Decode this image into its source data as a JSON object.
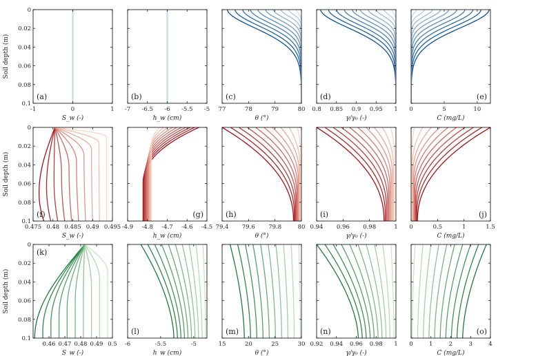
{
  "chart_data": {
    "type": "line",
    "figure": "Grid of soil-depth profiles (3 scenarios x 5 variables)",
    "ylabel": "Soil depth (m)",
    "y_range": [
      0,
      0.1
    ],
    "y_ticks": [
      "0",
      "0.02",
      "0.04",
      "0.06",
      "0.08",
      "0.1"
    ],
    "rows": [
      {
        "name": "row-blue",
        "palette": {
          "light": "#c6dbef",
          "dark": "#08519c"
        },
        "panels": [
          {
            "label": "(a)",
            "label_pos": "bottom-left",
            "xlabel": "S_w (-)",
            "xlim": [
              -1,
              1
            ],
            "xticks": [
              "-1",
              "0",
              "1"
            ],
            "tick_values": [
              -1,
              0,
              1
            ],
            "kind": "const",
            "value": 0,
            "n": 10
          },
          {
            "label": "(b)",
            "label_pos": "bottom-left",
            "xlabel": "h_w (cm)",
            "xlim": [
              -7,
              -5
            ],
            "xticks": [
              "-7",
              "-6.5",
              "-6",
              "-5.5",
              "-5"
            ],
            "tick_values": [
              -7,
              -6.5,
              -6,
              -5.5,
              -5
            ],
            "kind": "const",
            "value": -6,
            "n": 10
          },
          {
            "label": "(c)",
            "label_pos": "bottom-left",
            "xlabel": "θ (°)",
            "xlim": [
              77,
              80
            ],
            "xticks": [
              "77",
              "78",
              "79",
              "80"
            ],
            "tick_values": [
              77,
              78,
              79,
              80
            ],
            "kind": "front",
            "deep": 80,
            "surface_start": 77.2,
            "surface_end": 79.8,
            "depth_start": 0.03,
            "depth_end": 0.005,
            "n": 10
          },
          {
            "label": "(d)",
            "label_pos": "bottom-left",
            "xlabel": "γ/γ₀ (-)",
            "xlim": [
              0.8,
              1.0
            ],
            "xticks": [
              "0.8",
              "0.85",
              "0.9",
              "0.95",
              "1"
            ],
            "tick_values": [
              0.8,
              0.85,
              0.9,
              0.95,
              1.0
            ],
            "kind": "front",
            "deep": 1.0,
            "surface_start": 0.81,
            "surface_end": 0.99,
            "depth_start": 0.03,
            "depth_end": 0.005,
            "n": 10
          },
          {
            "label": "(e)",
            "label_pos": "bottom-right",
            "xlabel": "C (mg/L)",
            "xlim": [
              0,
              12
            ],
            "xticks": [
              "0",
              "5",
              "10"
            ],
            "tick_values": [
              0,
              5,
              10
            ],
            "kind": "front",
            "deep": 0,
            "surface_start": 11.8,
            "surface_end": 0.8,
            "depth_start": 0.03,
            "depth_end": 0.005,
            "n": 10
          }
        ]
      },
      {
        "name": "row-red",
        "palette": {
          "light": "#fcd5c2",
          "dark": "#a50f15"
        },
        "panels": [
          {
            "label": "(f)",
            "label_pos": "bottom-left",
            "xlabel": "S_w (-)",
            "xlim": [
              0.475,
              0.495
            ],
            "xticks": [
              "0.475",
              "0.48",
              "0.485",
              "0.49",
              "0.495"
            ],
            "tick_values": [
              0.475,
              0.48,
              0.485,
              0.49,
              0.495
            ],
            "kind": "belly",
            "surface": 0.4805,
            "deep_start": 0.4785,
            "deep_end": 0.4935,
            "trough_start": 0.4765,
            "trough_end": 0.4935,
            "trough_depth_start": 0.07,
            "trough_depth_end": 0.01,
            "n": 10
          },
          {
            "label": "(g)",
            "label_pos": "bottom-right",
            "xlabel": "h_w (cm)",
            "xlim": [
              -4.9,
              -4.5
            ],
            "xticks": [
              "-4.9",
              "-4.8",
              "-4.7",
              "-4.6",
              "-4.5"
            ],
            "tick_values": [
              -4.9,
              -4.8,
              -4.7,
              -4.6,
              -4.5
            ],
            "kind": "decay",
            "deep_start": -4.822,
            "deep_end": -4.78,
            "surface_start": -4.54,
            "surface_end": -4.74,
            "depth_start": 0.06,
            "depth_end": 0.02,
            "n": 10
          },
          {
            "label": "(h)",
            "label_pos": "bottom-left",
            "xlabel": "θ (°)",
            "xlim": [
              79.4,
              80
            ],
            "xticks": [
              "79.4",
              "79.6",
              "79.8",
              "80"
            ],
            "tick_values": [
              79.4,
              79.6,
              79.8,
              80
            ],
            "kind": "decay",
            "deep_start": 79.94,
            "deep_end": 79.995,
            "surface_start": 79.4,
            "surface_end": 79.97,
            "depth_start": 0.1,
            "depth_end": 0.035,
            "n": 10
          },
          {
            "label": "(i)",
            "label_pos": "bottom-left",
            "xlabel": "γ/γ₀ (-)",
            "xlim": [
              0.94,
              1.0
            ],
            "xticks": [
              "0.94",
              "0.96",
              "0.98",
              "1"
            ],
            "tick_values": [
              0.94,
              0.96,
              0.98,
              1.0
            ],
            "kind": "decay",
            "deep_start": 0.991,
            "deep_end": 0.999,
            "surface_start": 0.94,
            "surface_end": 0.996,
            "depth_start": 0.1,
            "depth_end": 0.035,
            "n": 10
          },
          {
            "label": "(j)",
            "label_pos": "bottom-right",
            "xlabel": "C (mg/L)",
            "xlim": [
              0,
              1.5
            ],
            "xticks": [
              "0",
              "0.5",
              "1",
              "1.5"
            ],
            "tick_values": [
              0,
              0.5,
              1,
              1.5
            ],
            "kind": "decay",
            "deep_start": 0.12,
            "deep_end": 0.01,
            "surface_start": 1.5,
            "surface_end": 0.06,
            "depth_start": 0.1,
            "depth_end": 0.035,
            "n": 10
          }
        ]
      },
      {
        "name": "row-green",
        "palette": {
          "light": "#c7e9c0",
          "dark": "#1a7a38"
        },
        "panels": [
          {
            "label": "(k)",
            "label_pos": "top-left",
            "xlabel": "S_w (-)",
            "xlim": [
              0.45,
              0.5
            ],
            "xticks": [
              "0.46",
              "0.47",
              "0.48",
              "0.49",
              "0.5"
            ],
            "tick_values": [
              0.46,
              0.47,
              0.48,
              0.49,
              0.5
            ],
            "kind": "fan",
            "surface": 0.4825,
            "deep_start": 0.451,
            "deep_end": 0.497,
            "depth_start": 0.1,
            "depth_end": 0.03,
            "n": 10
          },
          {
            "label": "(l)",
            "label_pos": "bottom-left",
            "xlabel": "h_w (cm)",
            "xlim": [
              -6,
              -4.8
            ],
            "xticks": [
              "-6",
              "-5.5",
              "-5"
            ],
            "tick_values": [
              -6,
              -5.5,
              -5
            ],
            "kind": "bow",
            "surface_start": -5.8,
            "surface_end": -4.86,
            "deep_start": -5.3,
            "deep_end": -4.82,
            "n": 10
          },
          {
            "label": "(m)",
            "label_pos": "bottom-left",
            "xlabel": "θ (°)",
            "xlim": [
              15,
              30
            ],
            "xticks": [
              "15",
              "20",
              "25",
              "30"
            ],
            "tick_values": [
              15,
              20,
              25,
              30
            ],
            "kind": "bow",
            "surface_start": 16.5,
            "surface_end": 29.5,
            "deep_start": 19.2,
            "deep_end": 29.8,
            "n": 10
          },
          {
            "label": "(n)",
            "label_pos": "bottom-left",
            "xlabel": "γ/γ₀ (-)",
            "xlim": [
              0.92,
              1.0
            ],
            "xticks": [
              "0.92",
              "0.94",
              "0.96",
              "0.98",
              "1"
            ],
            "tick_values": [
              0.92,
              0.94,
              0.96,
              0.98,
              1.0
            ],
            "kind": "bow",
            "surface_start": 0.92,
            "surface_end": 0.995,
            "deep_start": 0.962,
            "deep_end": 0.998,
            "n": 10
          },
          {
            "label": "(o)",
            "label_pos": "bottom-right",
            "xlabel": "C (mg/L)",
            "xlim": [
              0,
              4
            ],
            "xticks": [
              "0",
              "1",
              "2",
              "3",
              "4"
            ],
            "tick_values": [
              0,
              1,
              2,
              3,
              4
            ],
            "kind": "bow",
            "surface_start": 3.8,
            "surface_end": 0.2,
            "deep_start": 2.6,
            "deep_end": 0.05,
            "n": 10
          }
        ]
      }
    ]
  }
}
